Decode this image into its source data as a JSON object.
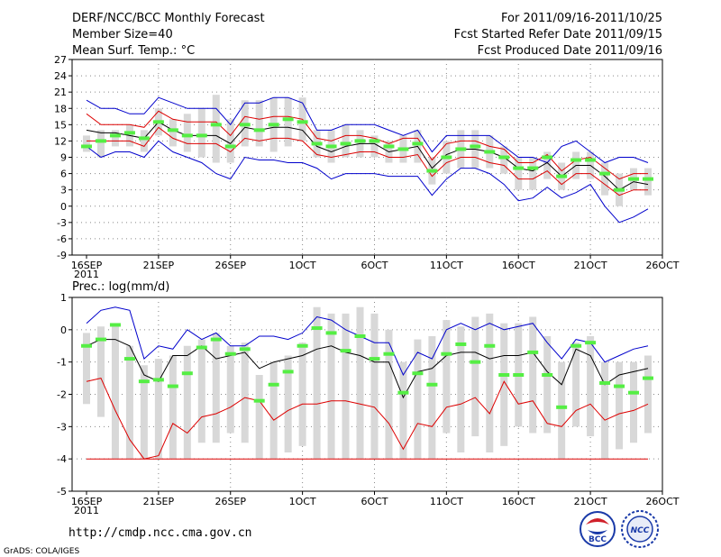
{
  "header": {
    "title": "DERF/NCC/BCC Monthly Forecast",
    "member_size": "Member Size=40",
    "variable": "Mean Surf. Temp.: °C",
    "period": "For 2011/09/16-2011/10/25",
    "started": "Fcst Started Refer Date 2011/09/15",
    "produced": "Fcst Produced Date 2011/09/16"
  },
  "footer": {
    "url": "http://cmdp.ncc.cma.gov.cn",
    "credit": "GrADS: COLA/IGES",
    "logo_bcc": "BCC",
    "logo_ncc": "NCC"
  },
  "colors": {
    "upper": "#0000cc",
    "mean": "#000000",
    "lower": "#dd0000",
    "median": "#55ee44",
    "box": "#d8d8d8"
  },
  "chart_data": [
    {
      "type": "line",
      "title": "Mean Surf. Temp.: °C",
      "ylim": [
        -9,
        27
      ],
      "yticks": [
        -9,
        -6,
        -3,
        0,
        3,
        6,
        9,
        12,
        15,
        18,
        21,
        24,
        27
      ],
      "xlim": [
        0,
        39
      ],
      "xticks": [
        {
          "day": 0,
          "label": "16SEP",
          "sub": "2011"
        },
        {
          "day": 5,
          "label": "21SEP"
        },
        {
          "day": 10,
          "label": "26SEP"
        },
        {
          "day": 15,
          "label": "1OCT"
        },
        {
          "day": 20,
          "label": "6OCT"
        },
        {
          "day": 25,
          "label": "11OCT"
        },
        {
          "day": 30,
          "label": "16OCT"
        },
        {
          "day": 35,
          "label": "21OCT"
        },
        {
          "day": 40,
          "label": "26OCT"
        }
      ],
      "grid": true,
      "series": [
        {
          "name": "max",
          "color": "#0000cc",
          "values": [
            19.5,
            18,
            18,
            17,
            17,
            20,
            19,
            18,
            18,
            18,
            15,
            19,
            19,
            20,
            20,
            19,
            14,
            14,
            15,
            15,
            15,
            14,
            13,
            14,
            10,
            13,
            13,
            13,
            13,
            11,
            9,
            9,
            8,
            11,
            12,
            10,
            8,
            9,
            9,
            8
          ]
        },
        {
          "name": "upper",
          "color": "#dd0000",
          "values": [
            17,
            15,
            15,
            15,
            14.5,
            17.5,
            16,
            15.5,
            15.5,
            15.5,
            13,
            16.5,
            16,
            16.5,
            16.5,
            16,
            12.5,
            12,
            13,
            13,
            12.5,
            11.5,
            12.5,
            12.5,
            8.5,
            11.5,
            12,
            12,
            11,
            10.5,
            8,
            8,
            9.5,
            6.5,
            8.5,
            9,
            7,
            5,
            6,
            6
          ]
        },
        {
          "name": "mean",
          "color": "#000000",
          "values": [
            14,
            13.5,
            13.5,
            13,
            12.5,
            15.5,
            14,
            13,
            13,
            13,
            11.5,
            14.5,
            14,
            14.5,
            14.5,
            14,
            11,
            10,
            11,
            11.5,
            11.5,
            10,
            10.5,
            11,
            7,
            9.5,
            10.5,
            10.5,
            10,
            9,
            7,
            6.5,
            8,
            5.5,
            7.5,
            7.5,
            5.5,
            3,
            4.5,
            4
          ]
        },
        {
          "name": "lower",
          "color": "#dd0000",
          "values": [
            12,
            12,
            12,
            12,
            11,
            14.5,
            12.5,
            11.5,
            11.5,
            11.5,
            10,
            12.5,
            12,
            12.5,
            12.5,
            12,
            9.5,
            9,
            9.5,
            10,
            10,
            9,
            9,
            9.5,
            5.5,
            8,
            9,
            9,
            8,
            7.5,
            5,
            5,
            6.5,
            4,
            6,
            6,
            4,
            2,
            3,
            3
          ]
        },
        {
          "name": "min",
          "color": "#0000cc",
          "values": [
            11,
            9,
            10,
            10,
            9,
            12,
            10,
            9,
            8,
            6,
            5,
            9,
            8.5,
            8.5,
            8,
            8,
            7,
            5,
            6,
            6,
            6,
            5.5,
            5.5,
            5.5,
            2,
            5,
            7,
            7,
            6,
            4,
            1,
            1.5,
            3.5,
            1.5,
            2.5,
            4,
            0,
            -3,
            -2,
            -0.5
          ]
        }
      ],
      "boxes": {
        "median": [
          11,
          12,
          13,
          13.5,
          12.5,
          15.5,
          14,
          13,
          13,
          15,
          11,
          15,
          14,
          15,
          16,
          15.5,
          11.5,
          11,
          11.5,
          12,
          12,
          11,
          10.5,
          11.5,
          6.5,
          9,
          10.5,
          11,
          10,
          9,
          7,
          7,
          9,
          5.5,
          8.5,
          8.5,
          6,
          3,
          5,
          5
        ],
        "top": [
          13,
          14,
          14,
          15,
          14,
          18,
          16,
          17,
          18,
          20.5,
          16,
          19.5,
          19.5,
          20,
          20,
          20,
          14,
          14,
          15,
          14,
          13,
          12,
          13,
          14,
          9,
          12,
          14,
          14,
          13,
          11,
          9,
          9,
          10,
          8,
          10,
          10,
          8,
          6,
          7,
          7
        ],
        "bottom": [
          10,
          9,
          11,
          11,
          10,
          13,
          11,
          10,
          9,
          8,
          8,
          11,
          11,
          10,
          11,
          12,
          9,
          8,
          9,
          9,
          9,
          8,
          8,
          8,
          4,
          6,
          7,
          7,
          7,
          6,
          3,
          3,
          5,
          3,
          5,
          5,
          2,
          0,
          3,
          2
        ]
      }
    },
    {
      "type": "line",
      "title": "Prec.: log(mm/d)",
      "ylim": [
        -5,
        1
      ],
      "yticks": [
        -5,
        -4,
        -3,
        -2,
        -1,
        0,
        1
      ],
      "xlim": [
        0,
        39
      ],
      "xticks": [
        {
          "day": 0,
          "label": "16SEP",
          "sub": "2011"
        },
        {
          "day": 5,
          "label": "21SEP"
        },
        {
          "day": 10,
          "label": "26SEP"
        },
        {
          "day": 15,
          "label": "1OCT"
        },
        {
          "day": 20,
          "label": "6OCT"
        },
        {
          "day": 25,
          "label": "11OCT"
        },
        {
          "day": 30,
          "label": "16OCT"
        },
        {
          "day": 35,
          "label": "21OCT"
        },
        {
          "day": 40,
          "label": "26OCT"
        }
      ],
      "grid": true,
      "series": [
        {
          "name": "max",
          "color": "#0000cc",
          "values": [
            0.2,
            0.6,
            0.7,
            0.6,
            -0.9,
            -0.5,
            -0.6,
            0,
            -0.3,
            -0.1,
            -0.5,
            -0.5,
            -0.2,
            -0.2,
            -0.3,
            -0.1,
            0.4,
            0.3,
            0,
            -0.2,
            -0.4,
            -0.4,
            -1.4,
            -0.7,
            -0.9,
            0,
            0.2,
            0,
            0.2,
            0,
            0.1,
            0.2,
            -0.4,
            -0.9,
            -0.3,
            -0.4,
            -1,
            -0.8,
            -0.6,
            -0.5
          ]
        },
        {
          "name": "mean",
          "color": "#000000",
          "values": [
            -0.5,
            -0.3,
            -0.3,
            -0.5,
            -1.4,
            -1.6,
            -0.8,
            -0.8,
            -0.5,
            -0.9,
            -0.8,
            -0.7,
            -1.2,
            -1,
            -0.9,
            -0.8,
            -0.6,
            -0.5,
            -0.7,
            -0.8,
            -1,
            -1,
            -2.1,
            -1.3,
            -1.2,
            -0.8,
            -0.7,
            -0.7,
            -0.9,
            -0.8,
            -0.8,
            -0.7,
            -1.3,
            -1.7,
            -0.6,
            -0.8,
            -1.7,
            -1.4,
            -1.3,
            -1.2
          ]
        },
        {
          "name": "lower",
          "color": "#dd0000",
          "values": [
            -1.6,
            -1.5,
            -2.5,
            -3.4,
            -4,
            -3.9,
            -2.9,
            -3.2,
            -2.7,
            -2.6,
            -2.4,
            -2.1,
            -2.2,
            -2.8,
            -2.5,
            -2.3,
            -2.3,
            -2.2,
            -2.2,
            -2.3,
            -2.4,
            -2.9,
            -3.7,
            -2.9,
            -3,
            -2.4,
            -2.3,
            -2.1,
            -2.6,
            -1.6,
            -2.3,
            -2.2,
            -2.9,
            -3,
            -2.5,
            -2.3,
            -2.8,
            -2.6,
            -2.5,
            -2.3
          ]
        },
        {
          "name": "min",
          "color": "#dd0000",
          "values": [
            -4,
            -4,
            -4,
            -4,
            -4,
            -4,
            -4,
            -4,
            -4,
            -4,
            -4,
            -4,
            -4,
            -4,
            -4,
            -4,
            -4,
            -4,
            -4,
            -4,
            -4,
            -4,
            -4,
            -4,
            -4,
            -4,
            -4,
            -4,
            -4,
            -4,
            -4,
            -4,
            -4,
            -4,
            -4,
            -4,
            -4,
            -4,
            -4,
            -4
          ]
        }
      ],
      "boxes": {
        "median": [
          -0.5,
          -0.3,
          0.15,
          -0.9,
          -1.6,
          -1.55,
          -1.75,
          -1.35,
          -0.55,
          -0.3,
          -0.75,
          -0.6,
          -2.2,
          -1.7,
          -1.3,
          -0.5,
          0.05,
          -0.1,
          -0.65,
          -0.2,
          -0.9,
          -0.75,
          -1.95,
          -1.35,
          -1.7,
          -0.75,
          -0.45,
          -1,
          -0.5,
          -1.4,
          -1.4,
          -0.7,
          -1.4,
          -2.4,
          -0.5,
          -0.4,
          -1.65,
          -1.75,
          -1.95,
          -1.5
        ],
        "top": [
          -0.1,
          0.1,
          0.1,
          -0.5,
          -1.1,
          -0.9,
          -0.8,
          -0.5,
          -0.3,
          -0.1,
          -0.5,
          -0.4,
          -1.4,
          -1,
          -0.8,
          -0.4,
          0.7,
          0.5,
          0.5,
          0.7,
          0.5,
          0,
          -1,
          -0.3,
          -0.2,
          0.3,
          0.1,
          0.4,
          0.5,
          0.2,
          0.2,
          0.4,
          -0.2,
          -1,
          -0.4,
          -0.2,
          -1,
          -1,
          -1,
          -0.8
        ],
        "bottom": [
          -2.3,
          -2.7,
          -4,
          -4,
          -4,
          -4,
          -4,
          -4,
          -3.5,
          -3.5,
          -3.2,
          -3.5,
          -4,
          -4,
          -3.8,
          -3.6,
          -4,
          -4,
          -4,
          -4,
          -4,
          -4,
          -4,
          -4,
          -4,
          -3.2,
          -3.8,
          -3.3,
          -3.8,
          -3.6,
          -3,
          -3.2,
          -3.2,
          -4,
          -3,
          -3.3,
          -4,
          -3.7,
          -3.5,
          -3.2
        ]
      }
    }
  ]
}
